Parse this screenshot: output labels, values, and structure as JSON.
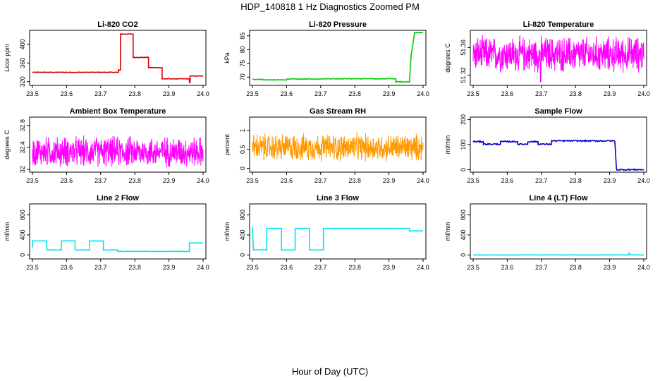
{
  "figure": {
    "title": "HDP_140818  1 Hz Diagnostics Zoomed PM",
    "xlabel": "Hour of Day (UTC)"
  },
  "chart_data": [
    {
      "id": "co2",
      "type": "line",
      "title": "Li-820 CO2",
      "ylabel": "Licor ppm",
      "color": "#dd0000",
      "xlim": [
        23.5,
        24.0
      ],
      "ylim": [
        312,
        430
      ],
      "xticks": [
        "23.5",
        "23.6",
        "23.7",
        "23.8",
        "23.9",
        "24.0"
      ],
      "yticks": [
        320,
        360,
        400
      ],
      "noise": 0.6,
      "x": [
        23.5,
        23.752,
        23.752,
        23.758,
        23.758,
        23.795,
        23.795,
        23.84,
        23.84,
        23.88,
        23.88,
        23.96,
        23.96,
        23.962,
        23.962,
        24.0
      ],
      "y": [
        340,
        340,
        345,
        345,
        422,
        422,
        372,
        372,
        350,
        350,
        326,
        326,
        318,
        318,
        332,
        332
      ]
    },
    {
      "id": "pressure",
      "type": "line",
      "title": "Li-820 Pressure",
      "ylabel": "kPa",
      "color": "#00cc00",
      "xlim": [
        23.5,
        24.0
      ],
      "ylim": [
        67,
        87
      ],
      "xticks": [
        "23.5",
        "23.6",
        "23.7",
        "23.8",
        "23.9",
        "24.0"
      ],
      "yticks": [
        70,
        75,
        80,
        85
      ],
      "noise": 0.12,
      "x": [
        23.5,
        23.53,
        23.53,
        23.6,
        23.6,
        23.7,
        23.7,
        23.92,
        23.92,
        23.96,
        23.965,
        23.975,
        23.975,
        24.0
      ],
      "y": [
        69.2,
        69.2,
        69.0,
        69.0,
        69.3,
        69.3,
        69.4,
        69.4,
        68.3,
        68.3,
        78,
        86,
        86.2,
        86.2
      ]
    },
    {
      "id": "litemp",
      "type": "noise",
      "title": "Li-820 Temperature",
      "ylabel": "degrees C",
      "color": "#ff00ff",
      "xlim": [
        23.5,
        24.0
      ],
      "ylim": [
        51.305,
        51.385
      ],
      "xticks": [
        "23.5",
        "23.6",
        "23.7",
        "23.8",
        "23.9",
        "24.0"
      ],
      "yticks": [
        51.32,
        51.36
      ],
      "mean": 51.35,
      "spread": 0.03,
      "dip": {
        "x": 23.698,
        "y": 51.31
      }
    },
    {
      "id": "ambtemp",
      "type": "noise",
      "title": "Ambient Box Temperature",
      "ylabel": "degrees C",
      "color": "#ff00ff",
      "xlim": [
        23.5,
        24.0
      ],
      "ylim": [
        31.95,
        32.95
      ],
      "xticks": [
        "23.5",
        "23.6",
        "23.7",
        "23.8",
        "23.9",
        "24.0"
      ],
      "yticks": [
        32.0,
        32.4,
        32.8
      ],
      "mean": 32.32,
      "spread": 0.32
    },
    {
      "id": "rh",
      "type": "noise",
      "title": "Gas Stream RH",
      "ylabel": "percent",
      "color": "#ff9900",
      "xlim": [
        23.5,
        24.0
      ],
      "ylim": [
        -0.1,
        1.35
      ],
      "xticks": [
        "23.5",
        "23.6",
        "23.7",
        "23.8",
        "23.9",
        "24.0"
      ],
      "yticks": [
        0.0,
        0.5,
        1.0
      ],
      "mean": 0.55,
      "spread": 0.42
    },
    {
      "id": "sample",
      "type": "line",
      "title": "Sample Flow",
      "ylabel": "ml/min",
      "color": "#0000cc",
      "xlim": [
        23.5,
        24.0
      ],
      "ylim": [
        -10,
        210
      ],
      "xticks": [
        "23.5",
        "23.6",
        "23.7",
        "23.8",
        "23.9",
        "24.0"
      ],
      "yticks": [
        0,
        100,
        200
      ],
      "noise": 2.5,
      "x": [
        23.5,
        23.53,
        23.53,
        23.58,
        23.58,
        23.63,
        23.63,
        23.66,
        23.66,
        23.69,
        23.69,
        23.73,
        23.73,
        23.915,
        23.92,
        24.0
      ],
      "y": [
        112,
        112,
        102,
        102,
        112,
        112,
        102,
        102,
        112,
        112,
        102,
        102,
        115,
        115,
        0,
        0
      ]
    },
    {
      "id": "line2",
      "type": "line",
      "title": "Line 2 Flow",
      "ylabel": "ml/min",
      "color": "#00e5ee",
      "xlim": [
        23.5,
        24.0
      ],
      "ylim": [
        -80,
        1020
      ],
      "xticks": [
        "23.5",
        "23.6",
        "23.7",
        "23.8",
        "23.9",
        "24.0"
      ],
      "yticks": [
        0,
        400,
        800
      ],
      "noise": 4,
      "x": [
        23.5,
        23.5,
        23.542,
        23.542,
        23.585,
        23.585,
        23.625,
        23.625,
        23.667,
        23.667,
        23.708,
        23.708,
        23.75,
        23.75,
        23.96,
        23.96,
        24.0
      ],
      "y": [
        150,
        280,
        280,
        100,
        100,
        280,
        280,
        100,
        100,
        280,
        280,
        100,
        100,
        70,
        70,
        240,
        240
      ]
    },
    {
      "id": "line3",
      "type": "line",
      "title": "Line 3 Flow",
      "ylabel": "ml/min",
      "color": "#00e5ee",
      "xlim": [
        23.5,
        24.0
      ],
      "ylim": [
        -80,
        1020
      ],
      "xticks": [
        "23.5",
        "23.6",
        "23.7",
        "23.8",
        "23.9",
        "24.0"
      ],
      "yticks": [
        0,
        400,
        800
      ],
      "noise": 4,
      "x": [
        23.5,
        23.5,
        23.503,
        23.542,
        23.542,
        23.585,
        23.585,
        23.625,
        23.625,
        23.667,
        23.667,
        23.708,
        23.708,
        23.96,
        23.96,
        24.0
      ],
      "y": [
        560,
        560,
        100,
        100,
        530,
        530,
        100,
        100,
        530,
        530,
        100,
        100,
        530,
        530,
        480,
        480
      ]
    },
    {
      "id": "line4",
      "type": "line",
      "title": "Line 4 (LT) Flow",
      "ylabel": "ml/min",
      "color": "#00e5ee",
      "xlim": [
        23.5,
        24.0
      ],
      "ylim": [
        -80,
        1020
      ],
      "xticks": [
        "23.5",
        "23.6",
        "23.7",
        "23.8",
        "23.9",
        "24.0"
      ],
      "yticks": [
        0,
        400,
        800
      ],
      "noise": 1,
      "x": [
        23.5,
        23.955,
        23.957,
        23.96,
        23.962,
        24.0
      ],
      "y": [
        0,
        0,
        40,
        0,
        0,
        0
      ]
    }
  ]
}
